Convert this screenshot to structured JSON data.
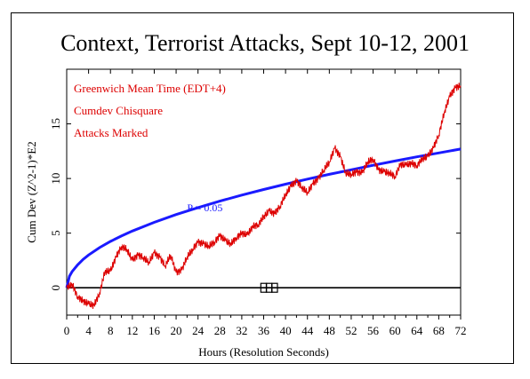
{
  "chart_data": {
    "type": "line",
    "title": "Context, Terrorist Attacks, Sept 10-12, 2001",
    "xlabel": "Hours (Resolution Seconds)",
    "ylabel": "Cum Dev (Z^2-1)*E2",
    "xlim": [
      0,
      72
    ],
    "ylim": [
      -2.5,
      20
    ],
    "x_ticks": [
      "0",
      "4",
      "8",
      "12",
      "16",
      "20",
      "24",
      "28",
      "32",
      "36",
      "40",
      "44",
      "48",
      "52",
      "56",
      "60",
      "64",
      "68",
      "72"
    ],
    "y_ticks": [
      "0",
      "5",
      "10",
      "15"
    ],
    "annotations": [
      "Greenwich Mean Time (EDT+4)",
      "Cumdev Chisquare",
      "Attacks Marked"
    ],
    "colors": {
      "cumdev": "#dd0000",
      "envelope": "#1a1aff",
      "baseline": "#000000",
      "annotation": "#dd0000"
    },
    "series": [
      {
        "name": "Cumdev Chisquare",
        "x": [
          0,
          1,
          2,
          3,
          4,
          5,
          6,
          7,
          8,
          9,
          10,
          11,
          12,
          13,
          14,
          15,
          16,
          17,
          18,
          19,
          20,
          21,
          22,
          23,
          24,
          25,
          26,
          27,
          28,
          29,
          30,
          31,
          32,
          33,
          34,
          35,
          36,
          37,
          38,
          39,
          40,
          41,
          42,
          43,
          44,
          45,
          46,
          47,
          48,
          49,
          50,
          51,
          52,
          53,
          54,
          55,
          56,
          57,
          58,
          59,
          60,
          61,
          62,
          63,
          64,
          65,
          66,
          67,
          68,
          69,
          70,
          71,
          72
        ],
        "y": [
          0,
          0.3,
          -0.8,
          -1.2,
          -1.5,
          -1.6,
          -0.5,
          1.5,
          1.5,
          2.8,
          3.8,
          3.5,
          2.5,
          3.0,
          2.8,
          2.3,
          3.2,
          2.8,
          2.0,
          3.0,
          1.4,
          1.6,
          2.8,
          3.5,
          4.2,
          4.0,
          3.8,
          4.2,
          4.8,
          4.3,
          4.0,
          4.6,
          5.0,
          4.8,
          5.6,
          5.8,
          6.5,
          7.0,
          6.8,
          7.5,
          8.5,
          9.3,
          9.8,
          9.2,
          8.7,
          9.5,
          10.0,
          10.8,
          11.5,
          12.8,
          12.0,
          10.5,
          10.4,
          10.6,
          10.5,
          11.5,
          11.8,
          10.8,
          10.6,
          10.5,
          10.2,
          11.3,
          11.2,
          11.4,
          11.2,
          11.8,
          12.0,
          12.8,
          14.0,
          16.0,
          17.5,
          18.3,
          18.5
        ]
      },
      {
        "name": "P = 0.05",
        "x": [
          0,
          0.5,
          1,
          2,
          3,
          4,
          6,
          8,
          10,
          12,
          16,
          20,
          24,
          28,
          32,
          36,
          40,
          44,
          48,
          52,
          56,
          60,
          64,
          68,
          72
        ],
        "y": [
          0,
          1.06,
          1.5,
          2.1,
          2.6,
          3.0,
          3.67,
          4.24,
          4.74,
          5.19,
          5.99,
          6.7,
          7.34,
          7.93,
          8.48,
          8.99,
          9.48,
          9.94,
          10.38,
          10.8,
          11.21,
          11.6,
          11.98,
          12.34,
          12.7
        ]
      }
    ],
    "envelope_label": "P = 0.05",
    "envelope_label_x": 22,
    "envelope_label_y": 7.0,
    "attack_marks_hours": [
      36.0,
      37.0,
      38.0
    ]
  }
}
